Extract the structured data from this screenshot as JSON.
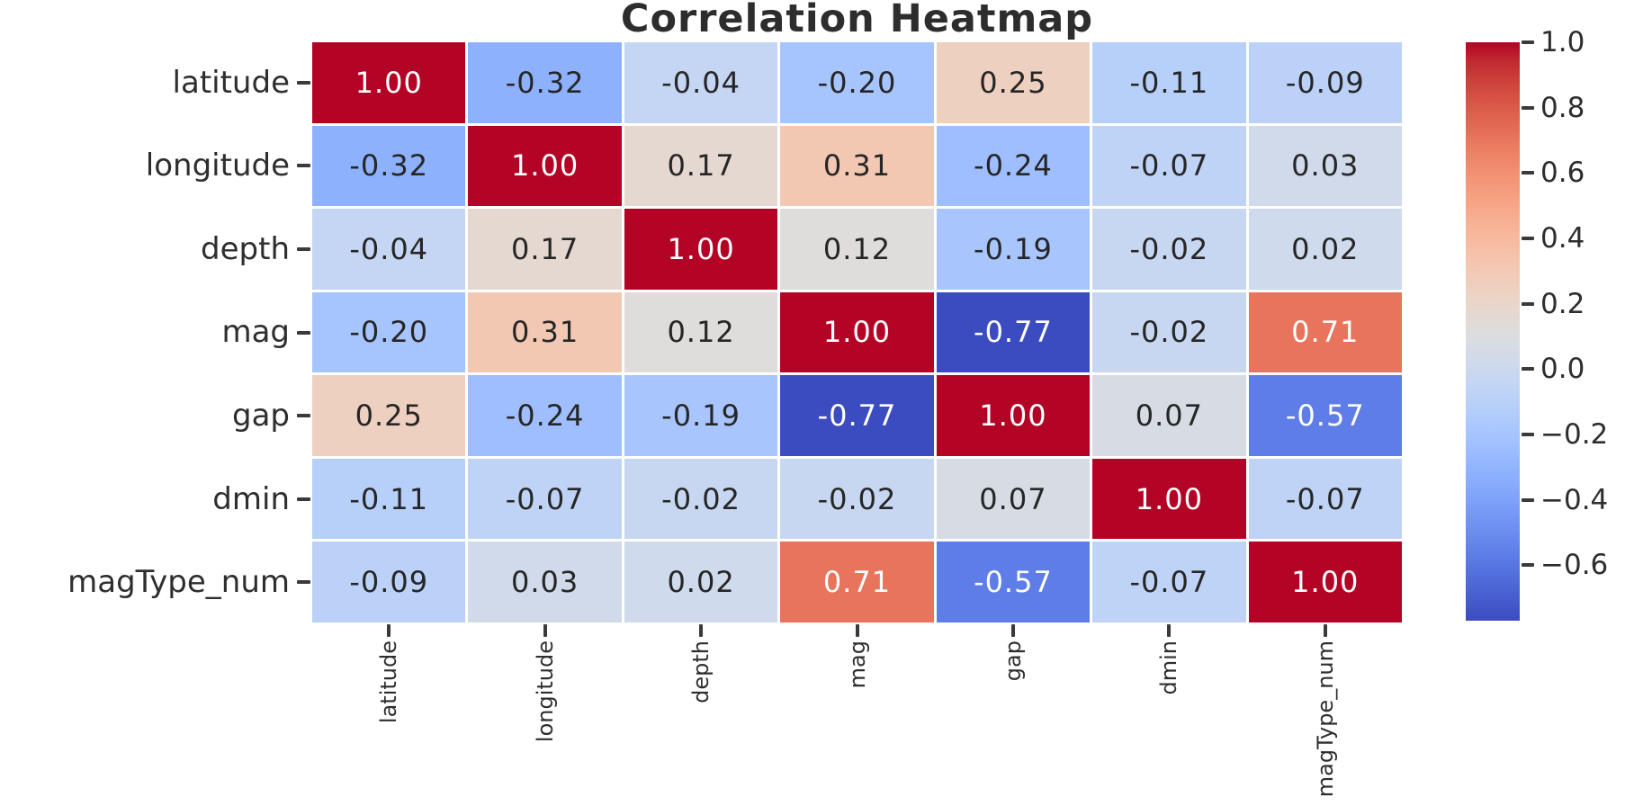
{
  "chart_data": {
    "type": "heatmap",
    "title": "Correlation Heatmap",
    "categories": [
      "latitude",
      "longitude",
      "depth",
      "mag",
      "gap",
      "dmin",
      "magType_num"
    ],
    "matrix": [
      [
        1.0,
        -0.32,
        -0.04,
        -0.2,
        0.25,
        -0.11,
        -0.09
      ],
      [
        -0.32,
        1.0,
        0.17,
        0.31,
        -0.24,
        -0.07,
        0.03
      ],
      [
        -0.04,
        0.17,
        1.0,
        0.12,
        -0.19,
        -0.02,
        0.02
      ],
      [
        -0.2,
        0.31,
        0.12,
        1.0,
        -0.77,
        -0.02,
        0.71
      ],
      [
        0.25,
        -0.24,
        -0.19,
        -0.77,
        1.0,
        0.07,
        -0.57
      ],
      [
        -0.11,
        -0.07,
        -0.02,
        -0.02,
        0.07,
        1.0,
        -0.07
      ],
      [
        -0.09,
        0.03,
        0.02,
        0.71,
        -0.57,
        -0.07,
        1.0
      ]
    ],
    "matrix_text": [
      [
        "1.00",
        "-0.32",
        "-0.04",
        "-0.20",
        "0.25",
        "-0.11",
        "-0.09"
      ],
      [
        "-0.32",
        "1.00",
        "0.17",
        "0.31",
        "-0.24",
        "-0.07",
        "0.03"
      ],
      [
        "-0.04",
        "0.17",
        "1.00",
        "0.12",
        "-0.19",
        "-0.02",
        "0.02"
      ],
      [
        "-0.20",
        "0.31",
        "0.12",
        "1.00",
        "-0.77",
        "-0.02",
        "0.71"
      ],
      [
        "0.25",
        "-0.24",
        "-0.19",
        "-0.77",
        "1.00",
        "0.07",
        "-0.57"
      ],
      [
        "-0.11",
        "-0.07",
        "-0.02",
        "-0.02",
        "0.07",
        "1.00",
        "-0.07"
      ],
      [
        "-0.09",
        "0.03",
        "0.02",
        "0.71",
        "-0.57",
        "-0.07",
        "1.00"
      ]
    ],
    "annotation_format": "%.2f",
    "colormap": {
      "name": "coolwarm",
      "vmin": -0.77,
      "vmax": 1.0,
      "colors": [
        "#3B4CC0",
        "#445ACC",
        "#4D68D7",
        "#5775E1",
        "#6282EA",
        "#6C8EF1",
        "#779AF7",
        "#82A5FB",
        "#8DB0FE",
        "#98B9FF",
        "#A3C2FF",
        "#AEC9FD",
        "#B8D0F9",
        "#C2D5F4",
        "#CCD9EE",
        "#D5DBE6",
        "#DDDDDD",
        "#E5D8D1",
        "#ECD3C5",
        "#F1CCB9",
        "#F5C4AD",
        "#F7BBA0",
        "#F7B194",
        "#F7A687",
        "#F49A7B",
        "#F18D6F",
        "#EC7F63",
        "#E57058",
        "#DE604D",
        "#D55042",
        "#CB3E38",
        "#C0282F",
        "#B40426"
      ]
    },
    "colorbar": {
      "position": "right",
      "ticks": [
        1.0,
        0.8,
        0.6,
        0.4,
        0.2,
        0.0,
        -0.2,
        -0.4,
        -0.6
      ],
      "tick_labels": [
        "1.0",
        "0.8",
        "0.6",
        "0.4",
        "0.2",
        "0.0",
        "−0.2",
        "−0.4",
        "−0.6"
      ]
    },
    "cell_text_color_dark": "#262626",
    "cell_text_color_light": "#ffffff",
    "grid_line_color": "#ffffff",
    "background_color": "#ffffff"
  }
}
